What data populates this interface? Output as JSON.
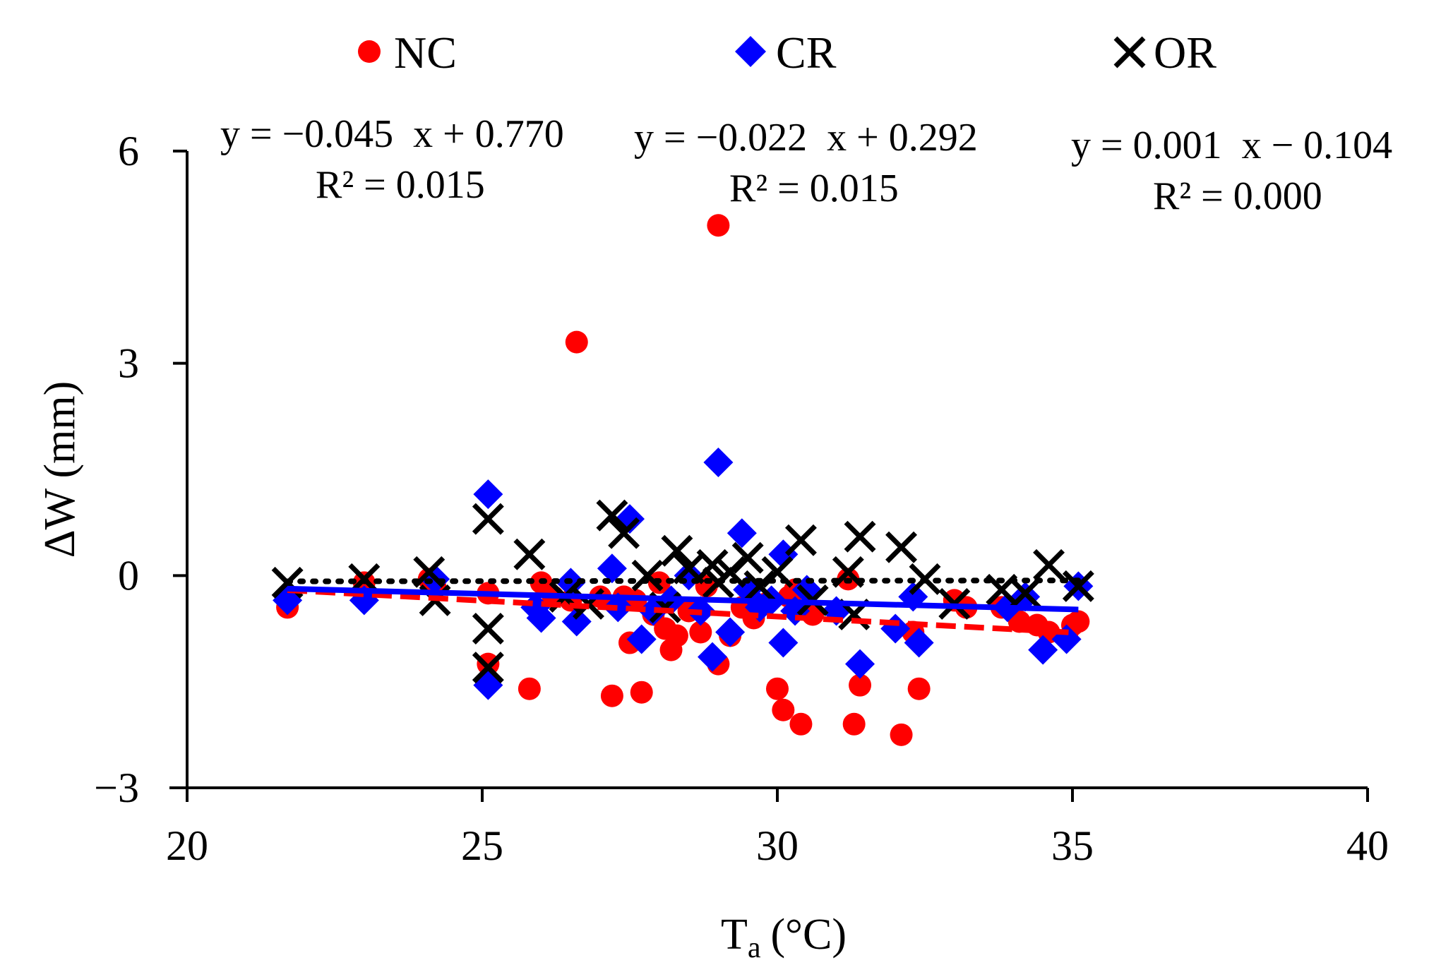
{
  "chart_data": {
    "type": "scatter",
    "title": "",
    "xlabel": {
      "main": "T",
      "sub": "a",
      "unit": "(°C)"
    },
    "ylabel": "ΔW (mm)",
    "xlim": [
      20,
      40
    ],
    "ylim": [
      -3,
      6
    ],
    "xticks": [
      "20",
      "25",
      "30",
      "35",
      "40"
    ],
    "yticks": [
      "−3",
      "0",
      "3",
      "6"
    ],
    "x_tick_values": [
      20,
      25,
      30,
      35,
      40
    ],
    "y_tick_values": [
      -3,
      0,
      3,
      6
    ],
    "grid": false,
    "legend_position": "top",
    "colors": {
      "NC": "#ff0000",
      "CR": "#0000ff",
      "OR": "#000000"
    },
    "series": [
      {
        "name": "NC",
        "marker": "circle",
        "color": "#ff0000",
        "trendline_style": "dashed",
        "equation": "y = −0.045  x + 0.770",
        "r2": "R² = 0.015",
        "trendline": {
          "slope": -0.045,
          "intercept": 0.77
        },
        "points": [
          [
            21.7,
            -0.45
          ],
          [
            23.0,
            -0.1
          ],
          [
            24.1,
            -0.05
          ],
          [
            24.2,
            -0.15
          ],
          [
            25.1,
            -0.25
          ],
          [
            25.1,
            -1.25
          ],
          [
            25.8,
            -1.6
          ],
          [
            26.0,
            -0.1
          ],
          [
            26.2,
            -0.3
          ],
          [
            26.5,
            -0.35
          ],
          [
            26.6,
            3.3
          ],
          [
            27.0,
            -0.3
          ],
          [
            27.2,
            -1.7
          ],
          [
            27.4,
            -0.3
          ],
          [
            27.5,
            -0.95
          ],
          [
            27.6,
            -0.35
          ],
          [
            27.7,
            -1.65
          ],
          [
            27.9,
            -0.55
          ],
          [
            28.0,
            -0.1
          ],
          [
            28.1,
            -0.75
          ],
          [
            28.2,
            -1.05
          ],
          [
            28.3,
            -0.85
          ],
          [
            28.5,
            -0.5
          ],
          [
            28.7,
            -0.8
          ],
          [
            28.8,
            -0.15
          ],
          [
            29.0,
            -1.25
          ],
          [
            29.0,
            4.95
          ],
          [
            29.2,
            -0.85
          ],
          [
            29.4,
            -0.45
          ],
          [
            29.6,
            -0.6
          ],
          [
            29.8,
            -0.4
          ],
          [
            30.0,
            -1.6
          ],
          [
            30.1,
            -1.9
          ],
          [
            30.2,
            -0.3
          ],
          [
            30.3,
            -0.2
          ],
          [
            30.4,
            -2.1
          ],
          [
            30.6,
            -0.55
          ],
          [
            31.2,
            -0.05
          ],
          [
            31.3,
            -2.1
          ],
          [
            31.4,
            -1.55
          ],
          [
            32.1,
            -2.25
          ],
          [
            32.3,
            -0.8
          ],
          [
            32.4,
            -1.6
          ],
          [
            33.0,
            -0.35
          ],
          [
            33.2,
            -0.45
          ],
          [
            33.8,
            -0.45
          ],
          [
            34.1,
            -0.65
          ],
          [
            34.4,
            -0.7
          ],
          [
            34.6,
            -0.8
          ],
          [
            35.0,
            -0.7
          ],
          [
            35.1,
            -0.65
          ]
        ]
      },
      {
        "name": "CR",
        "marker": "diamond",
        "color": "#0000ff",
        "trendline_style": "solid",
        "equation": "y = −0.022  x + 0.292",
        "r2": "R² = 0.015",
        "trendline": {
          "slope": -0.022,
          "intercept": 0.292
        },
        "points": [
          [
            21.7,
            -0.35
          ],
          [
            23.0,
            -0.35
          ],
          [
            24.2,
            -0.05
          ],
          [
            25.1,
            1.15
          ],
          [
            25.1,
            -1.55
          ],
          [
            25.9,
            -0.45
          ],
          [
            26.0,
            -0.6
          ],
          [
            26.5,
            -0.1
          ],
          [
            26.6,
            -0.65
          ],
          [
            27.2,
            0.1
          ],
          [
            27.3,
            -0.45
          ],
          [
            27.5,
            0.8
          ],
          [
            27.7,
            -0.9
          ],
          [
            27.9,
            -0.5
          ],
          [
            28.2,
            -0.35
          ],
          [
            28.5,
            0.0
          ],
          [
            28.7,
            -0.5
          ],
          [
            28.9,
            -1.15
          ],
          [
            29.0,
            1.6
          ],
          [
            29.2,
            -0.8
          ],
          [
            29.4,
            0.6
          ],
          [
            29.5,
            -0.2
          ],
          [
            29.7,
            -0.45
          ],
          [
            29.9,
            -0.35
          ],
          [
            30.1,
            -0.95
          ],
          [
            30.1,
            0.3
          ],
          [
            30.3,
            -0.5
          ],
          [
            30.5,
            -0.2
          ],
          [
            31.0,
            -0.5
          ],
          [
            31.4,
            -1.25
          ],
          [
            32.0,
            -0.75
          ],
          [
            32.3,
            -0.3
          ],
          [
            32.4,
            -0.95
          ],
          [
            33.9,
            -0.45
          ],
          [
            34.2,
            -0.3
          ],
          [
            34.5,
            -1.05
          ],
          [
            34.9,
            -0.9
          ],
          [
            35.1,
            -0.15
          ]
        ]
      },
      {
        "name": "OR",
        "marker": "cross",
        "color": "#000000",
        "trendline_style": "dotted",
        "equation": "y = 0.001  x − 0.104",
        "r2": "R² = 0.000",
        "trendline": {
          "slope": 0.001,
          "intercept": -0.104
        },
        "points": [
          [
            21.7,
            -0.1
          ],
          [
            23.0,
            -0.05
          ],
          [
            24.1,
            0.05
          ],
          [
            24.2,
            -0.35
          ],
          [
            25.1,
            0.8
          ],
          [
            25.1,
            -0.75
          ],
          [
            25.1,
            -1.3
          ],
          [
            25.8,
            0.3
          ],
          [
            26.4,
            -0.3
          ],
          [
            26.8,
            -0.4
          ],
          [
            27.2,
            0.85
          ],
          [
            27.4,
            0.6
          ],
          [
            27.8,
            0.0
          ],
          [
            28.1,
            -0.45
          ],
          [
            28.3,
            0.35
          ],
          [
            28.5,
            0.1
          ],
          [
            28.9,
            0.15
          ],
          [
            29.0,
            -0.1
          ],
          [
            29.2,
            0.05
          ],
          [
            29.5,
            0.25
          ],
          [
            29.7,
            -0.15
          ],
          [
            30.0,
            0.05
          ],
          [
            30.4,
            0.5
          ],
          [
            30.6,
            -0.35
          ],
          [
            31.2,
            0.05
          ],
          [
            31.3,
            -0.55
          ],
          [
            31.4,
            0.55
          ],
          [
            32.1,
            0.4
          ],
          [
            32.5,
            -0.05
          ],
          [
            33.0,
            -0.4
          ],
          [
            33.8,
            -0.2
          ],
          [
            34.2,
            -0.25
          ],
          [
            34.6,
            0.15
          ],
          [
            35.1,
            -0.15
          ]
        ]
      }
    ]
  }
}
